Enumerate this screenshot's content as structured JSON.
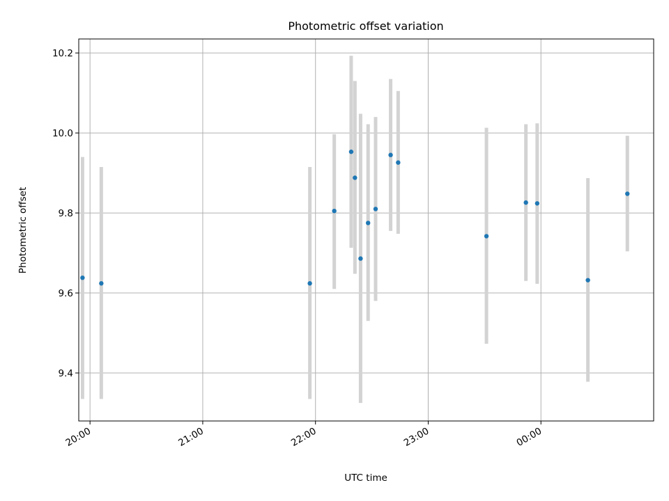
{
  "chart_data": {
    "type": "scatter",
    "title": "Photometric offset variation",
    "xlabel": "UTC time",
    "ylabel": "Photometric offset",
    "x_ticks": [
      "20:00",
      "21:00",
      "22:00",
      "23:00",
      "00:00"
    ],
    "y_ticks": [
      "9.4",
      "9.6",
      "9.8",
      "10.0",
      "10.2"
    ],
    "xlim": [
      "19:54",
      "01:00"
    ],
    "ylim": [
      9.28,
      10.235
    ],
    "grid": true,
    "series": [
      {
        "points": [
          {
            "x": "19:56",
            "y": 9.638,
            "err_low": 9.335,
            "err_high": 9.94
          },
          {
            "x": "20:06",
            "y": 9.624,
            "err_low": 9.335,
            "err_high": 9.915
          },
          {
            "x": "21:57",
            "y": 9.624,
            "err_low": 9.335,
            "err_high": 9.915
          },
          {
            "x": "22:10",
            "y": 9.805,
            "err_low": 9.61,
            "err_high": 9.997
          },
          {
            "x": "22:19",
            "y": 9.953,
            "err_low": 9.713,
            "err_high": 10.193
          },
          {
            "x": "22:21",
            "y": 9.888,
            "err_low": 9.648,
            "err_high": 10.13
          },
          {
            "x": "22:24",
            "y": 9.686,
            "err_low": 9.325,
            "err_high": 10.048
          },
          {
            "x": "22:28",
            "y": 9.775,
            "err_low": 9.53,
            "err_high": 10.022
          },
          {
            "x": "22:32",
            "y": 9.81,
            "err_low": 9.58,
            "err_high": 10.04
          },
          {
            "x": "22:40",
            "y": 9.945,
            "err_low": 9.755,
            "err_high": 10.135
          },
          {
            "x": "22:44",
            "y": 9.926,
            "err_low": 9.748,
            "err_high": 10.105
          },
          {
            "x": "23:31",
            "y": 9.742,
            "err_low": 9.473,
            "err_high": 10.013
          },
          {
            "x": "23:52",
            "y": 9.826,
            "err_low": 9.63,
            "err_high": 10.022
          },
          {
            "x": "23:58",
            "y": 9.824,
            "err_low": 9.623,
            "err_high": 10.024
          },
          {
            "x": "00:25",
            "y": 9.632,
            "err_low": 9.378,
            "err_high": 9.887
          },
          {
            "x": "00:46",
            "y": 9.848,
            "err_low": 9.704,
            "err_high": 9.993
          }
        ]
      }
    ],
    "colors": {
      "point": "#1f77b4",
      "errorbar": "#d3d3d3",
      "grid": "#b0b0b0",
      "axes": "#000000"
    }
  }
}
